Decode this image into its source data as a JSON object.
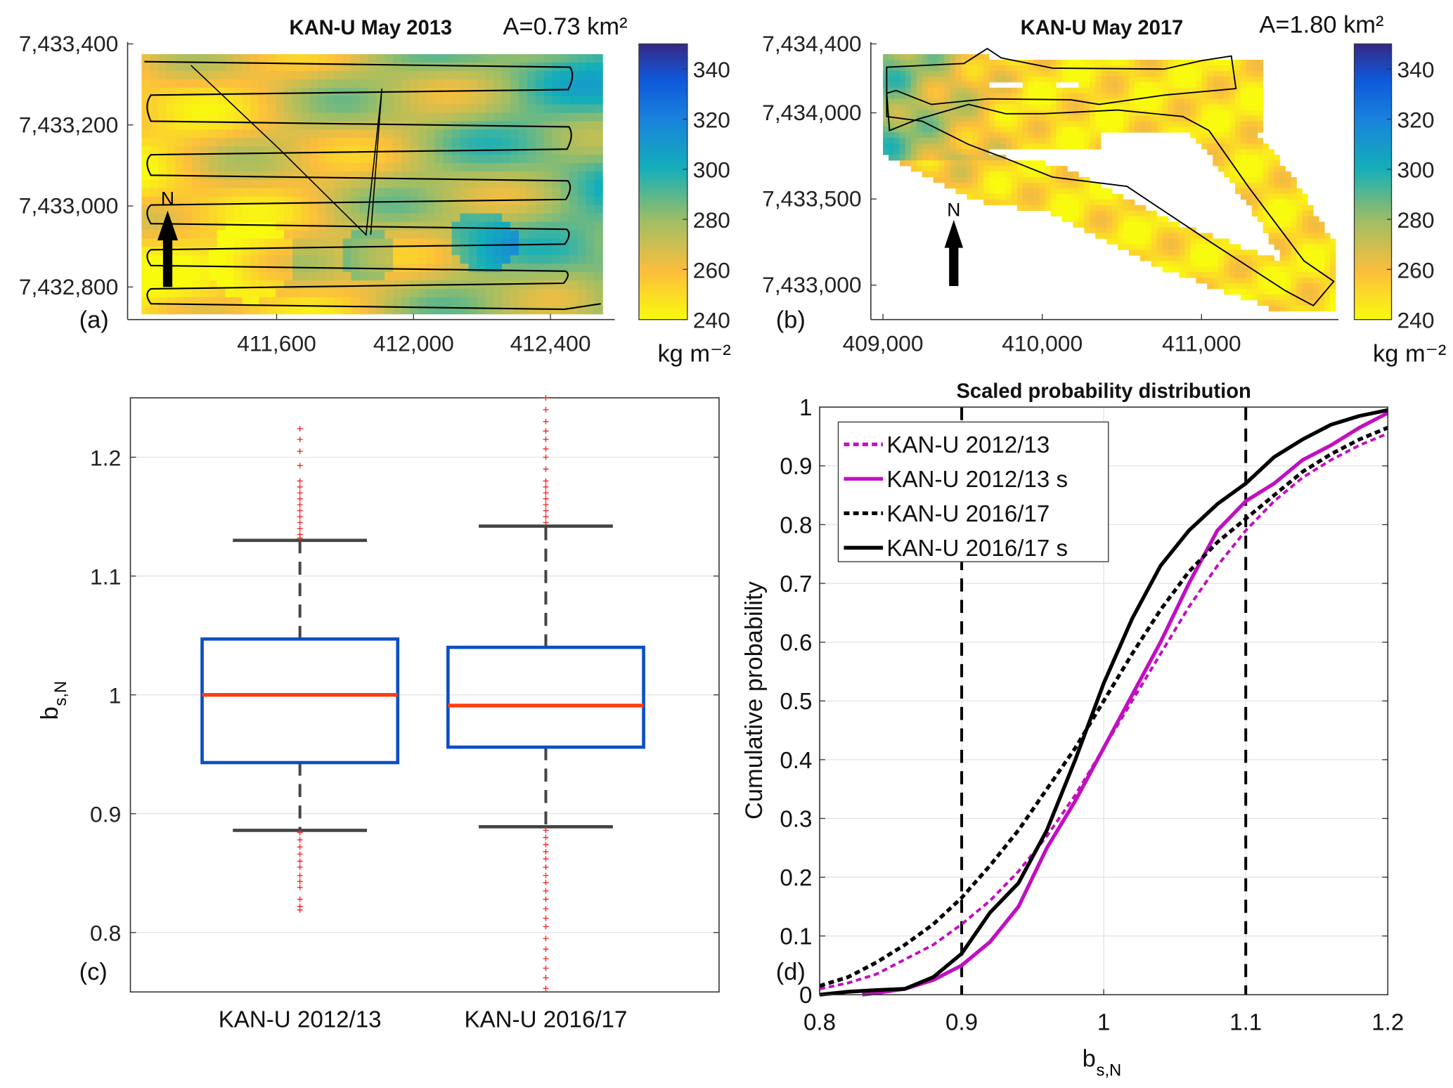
{
  "panels": {
    "a": {
      "letter": "(a)",
      "title": "KAN-U May 2013",
      "area": "A=0.73 km²",
      "north": "N",
      "xticks": [
        411600,
        412000,
        412400
      ],
      "xtick_labels": [
        "411,600",
        "412,000",
        "412,400"
      ],
      "yticks": [
        7433400,
        7433200,
        7433000,
        7432800
      ],
      "ytick_labels": [
        "7,433,400",
        "7,433,200",
        "7,433,000",
        "7,432,800"
      ]
    },
    "b": {
      "letter": "(b)",
      "title": "KAN-U May 2017",
      "area": "A=1.80 km²",
      "north": "N",
      "xticks": [
        409000,
        410000,
        411000
      ],
      "xtick_labels": [
        "409,000",
        "410,000",
        "411,000"
      ],
      "yticks": [
        7434400,
        7434000,
        7433500,
        7433000
      ],
      "ytick_labels": [
        "7,434,400",
        "7,434,000",
        "7,433,500",
        "7,433,000"
      ]
    },
    "c": {
      "letter": "(c)"
    },
    "d": {
      "letter": "(d)"
    }
  },
  "colorbar": {
    "range": [
      240,
      350
    ],
    "ticks": [
      240,
      260,
      280,
      300,
      320,
      340
    ],
    "tick_labels": [
      "240",
      "260",
      "280",
      "300",
      "320",
      "340"
    ],
    "unit": "kg m⁻²",
    "colormap": "parula"
  },
  "chart_data": [
    {
      "type": "heatmap",
      "panel": "a",
      "title": "KAN-U May 2013",
      "annotation": "A=0.73 km²",
      "xlim": [
        411330,
        412480
      ],
      "ylim": [
        7432720,
        7433400
      ],
      "color_range": [
        240,
        350
      ],
      "colorbar_label": "kg m⁻²"
    },
    {
      "type": "heatmap",
      "panel": "b",
      "title": "KAN-U May 2017",
      "annotation": "A=1.80 km²",
      "xlim": [
        409000,
        411850
      ],
      "ylim": [
        7432800,
        7434400
      ],
      "color_range": [
        240,
        350
      ],
      "colorbar_label": "kg m⁻²"
    },
    {
      "type": "box",
      "panel": "c",
      "ylabel_main": "b",
      "ylabel_sub": "s,N",
      "ylim": [
        0.75,
        1.25
      ],
      "yticks": [
        0.8,
        0.9,
        1,
        1.1,
        1.2
      ],
      "ytick_labels": [
        "0.8",
        "0.9",
        "1",
        "1.1",
        "1.2"
      ],
      "grid": true,
      "categories": [
        "KAN-U 2012/13",
        "KAN-U 2016/17"
      ],
      "boxes": [
        {
          "q1": 0.943,
          "median": 1.0,
          "q3": 1.047,
          "whisker_low": 0.886,
          "whisker_high": 1.13,
          "outliers": [
            1.132,
            1.135,
            1.14,
            1.145,
            1.15,
            1.155,
            1.16,
            1.165,
            1.17,
            1.175,
            1.18,
            1.193,
            1.205,
            1.215,
            1.224,
            0.884,
            0.878,
            0.872,
            0.866,
            0.86,
            0.855,
            0.848,
            0.843,
            0.838,
            0.828,
            0.822,
            0.819
          ]
        },
        {
          "q1": 0.956,
          "median": 0.991,
          "q3": 1.04,
          "whisker_low": 0.889,
          "whisker_high": 1.142,
          "outliers": [
            1.145,
            1.15,
            1.155,
            1.16,
            1.165,
            1.17,
            1.175,
            1.18,
            1.19,
            1.2,
            1.207,
            1.215,
            1.222,
            1.23,
            1.24,
            1.25,
            0.886,
            0.88,
            0.874,
            0.868,
            0.862,
            0.855,
            0.848,
            0.842,
            0.835,
            0.828,
            0.82,
            0.812,
            0.805,
            0.795,
            0.786,
            0.778,
            0.77,
            0.762,
            0.753
          ]
        }
      ],
      "colors": {
        "box": "#0b4fc4",
        "median": "#ff3d10",
        "whisker": "#444444",
        "outlier": "#ff2020"
      }
    },
    {
      "type": "line",
      "panel": "d",
      "title": "Scaled probability distribution",
      "xlabel_main": "b",
      "xlabel_sub": "s,N",
      "ylabel": "Cumulative probability",
      "xlim": [
        0.8,
        1.2
      ],
      "ylim": [
        0,
        1
      ],
      "grid": true,
      "legend_placement": "top-left",
      "xticks": [
        0.8,
        0.9,
        1,
        1.1,
        1.2
      ],
      "xtick_labels": [
        "0.8",
        "0.9",
        "1",
        "1.1",
        "1.2"
      ],
      "yticks": [
        0,
        0.1,
        0.2,
        0.3,
        0.4,
        0.5,
        0.6,
        0.7,
        0.8,
        0.9,
        1
      ],
      "ytick_labels": [
        "0",
        "0.1",
        "0.2",
        "0.3",
        "0.4",
        "0.5",
        "0.6",
        "0.7",
        "0.8",
        "0.9",
        "1"
      ],
      "vertical_lines": [
        0.9,
        1.1
      ],
      "x": [
        0.8,
        0.82,
        0.84,
        0.86,
        0.88,
        0.9,
        0.92,
        0.94,
        0.96,
        0.98,
        1.0,
        1.02,
        1.04,
        1.06,
        1.08,
        1.1,
        1.12,
        1.14,
        1.16,
        1.18,
        1.2
      ],
      "series": [
        {
          "name": "KAN-U 2012/13",
          "color": "#c010c0",
          "style": "dotted",
          "values": [
            0.01,
            0.02,
            0.035,
            0.06,
            0.085,
            0.12,
            0.16,
            0.21,
            0.27,
            0.34,
            0.42,
            0.5,
            0.58,
            0.66,
            0.73,
            0.79,
            0.84,
            0.88,
            0.91,
            0.935,
            0.955
          ]
        },
        {
          "name": "KAN-U 2012/13 s",
          "color": "#c010c0",
          "style": "solid",
          "values": [
            null,
            null,
            0.003,
            0.01,
            0.025,
            0.05,
            0.09,
            0.15,
            0.25,
            0.33,
            0.42,
            0.51,
            0.6,
            0.7,
            0.79,
            0.84,
            0.87,
            0.91,
            0.935,
            0.965,
            0.99
          ]
        },
        {
          "name": "KAN-U 2016/17",
          "color": "#000000",
          "style": "dotted",
          "values": [
            0.015,
            0.03,
            0.055,
            0.085,
            0.12,
            0.165,
            0.22,
            0.28,
            0.35,
            0.42,
            0.5,
            0.58,
            0.655,
            0.72,
            0.77,
            0.81,
            0.85,
            0.89,
            0.92,
            0.945,
            0.965
          ]
        },
        {
          "name": "KAN-U 2016/17 s",
          "color": "#000000",
          "style": "solid",
          "values": [
            0.0,
            0.005,
            0.008,
            0.01,
            0.03,
            0.07,
            0.14,
            0.19,
            0.28,
            0.4,
            0.53,
            0.64,
            0.73,
            0.79,
            0.835,
            0.87,
            0.915,
            0.945,
            0.97,
            0.985,
            0.995
          ]
        }
      ]
    }
  ]
}
